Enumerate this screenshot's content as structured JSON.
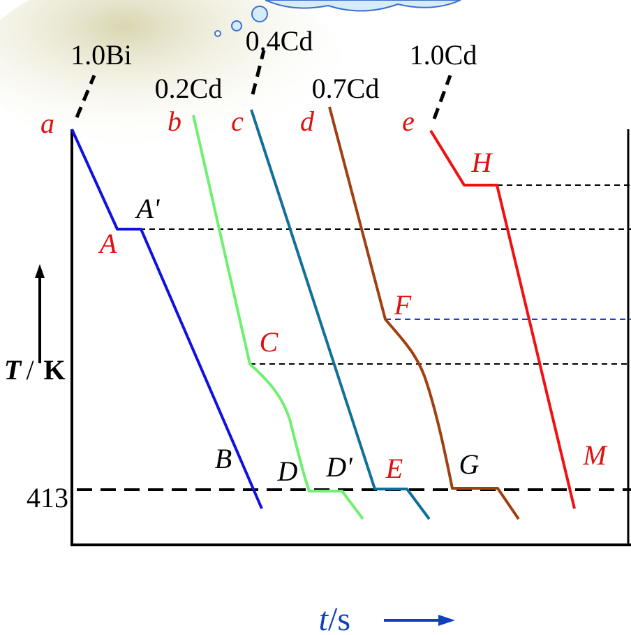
{
  "curves": [
    {
      "composition": "1.0Bi",
      "start": "a"
    },
    {
      "composition": "0.2Cd",
      "start": "b"
    },
    {
      "composition": "0.4Cd",
      "start": "c"
    },
    {
      "composition": "0.7Cd",
      "start": "d"
    },
    {
      "composition": "1.0Cd",
      "start": "e"
    }
  ],
  "points": {
    "A": "A",
    "A_prime": "A'",
    "B": "B",
    "C": "C",
    "D": "D",
    "D_prime": "D'",
    "E": "E",
    "F": "F",
    "G": "G",
    "H": "H",
    "M": "M"
  },
  "axes": {
    "y_label": [
      "T",
      "/",
      "K"
    ],
    "y_tick": "413",
    "x_label": [
      "t",
      "/s"
    ]
  }
}
